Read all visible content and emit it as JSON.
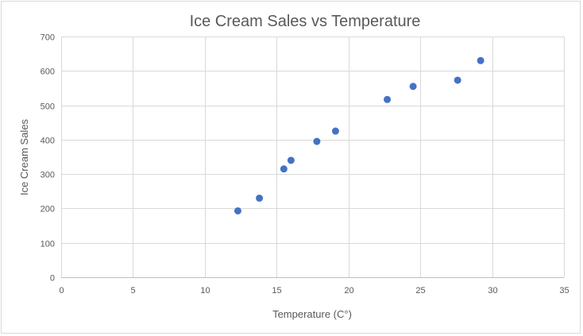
{
  "chart_data": {
    "type": "scatter",
    "title": "Ice Cream Sales vs Temperature",
    "xlabel": "Temperature (C°)",
    "ylabel": "Ice Cream Sales",
    "xlim": [
      0,
      35
    ],
    "ylim": [
      0,
      700
    ],
    "xticks": [
      0,
      5,
      10,
      15,
      20,
      25,
      30,
      35
    ],
    "yticks": [
      0,
      100,
      200,
      300,
      400,
      500,
      600,
      700
    ],
    "grid": true,
    "colors": {
      "marker": "#4472c4",
      "grid": "#d9d9d9",
      "text": "#595959"
    },
    "series": [
      {
        "x": [
          12.3,
          13.8,
          15.5,
          16.0,
          17.8,
          19.1,
          22.7,
          24.5,
          27.6,
          29.2
        ],
        "y": [
          193,
          230,
          315,
          340,
          395,
          425,
          517,
          555,
          573,
          630
        ]
      }
    ]
  }
}
